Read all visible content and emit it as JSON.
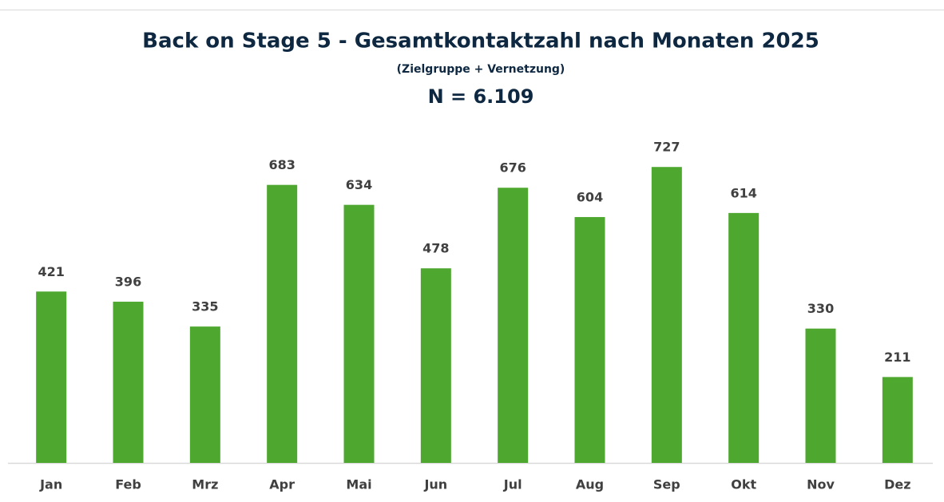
{
  "chart_data": {
    "type": "bar",
    "title": "Back on Stage 5 - Gesamtkontaktzahl nach Monaten 2025",
    "subtitle": "(Zielgruppe + Vernetzung)",
    "annotation": "N = 6.109",
    "categories": [
      "Jan",
      "Feb",
      "Mrz",
      "Apr",
      "Mai",
      "Jun",
      "Jul",
      "Aug",
      "Sep",
      "Okt",
      "Nov",
      "Dez"
    ],
    "values": [
      421,
      396,
      335,
      683,
      634,
      478,
      676,
      604,
      727,
      614,
      330,
      211
    ],
    "color": "#4ea72e"
  }
}
